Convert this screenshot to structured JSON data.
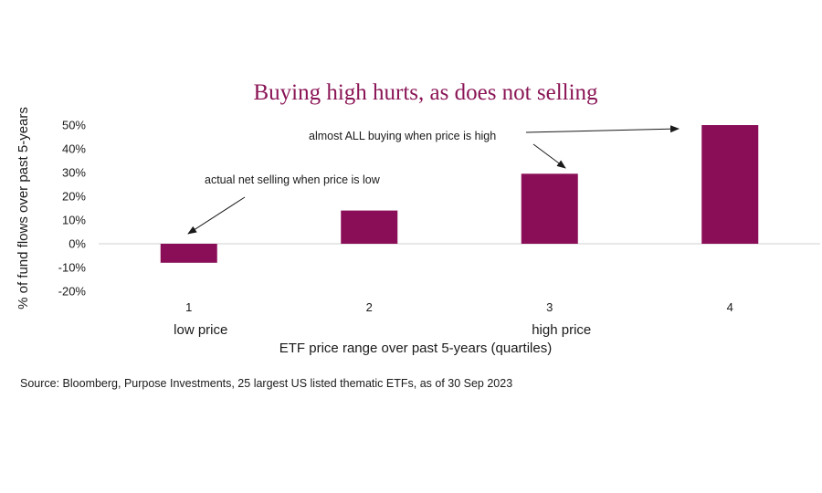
{
  "chart_data": {
    "type": "bar",
    "title": "Buying high hurts, as does not selling",
    "categories": [
      "1",
      "2",
      "3",
      "4"
    ],
    "values": [
      -8,
      14,
      29.5,
      50
    ],
    "bar_color": "#8a0e57",
    "ylim": [
      -20,
      50
    ],
    "yticks": [
      50,
      40,
      30,
      20,
      10,
      0,
      -10,
      -20
    ],
    "ytick_labels": [
      "50%",
      "40%",
      "30%",
      "20%",
      "10%",
      "0%",
      "-10%",
      "-20%"
    ],
    "ylabel": "% of fund flows over past 5-years",
    "xlabel": "ETF price range over past 5-years (quartiles)",
    "category_sublabels": [
      "low price",
      "",
      "high price",
      ""
    ],
    "grid": false,
    "annotations": [
      {
        "text": "actual net selling when price is low",
        "target_category": "1"
      },
      {
        "text": "almost ALL buying when price is high",
        "target_category": "3"
      }
    ]
  },
  "source": "Source: Bloomberg, Purpose Investments, 25 largest US listed thematic ETFs, as of 30 Sep 2023"
}
